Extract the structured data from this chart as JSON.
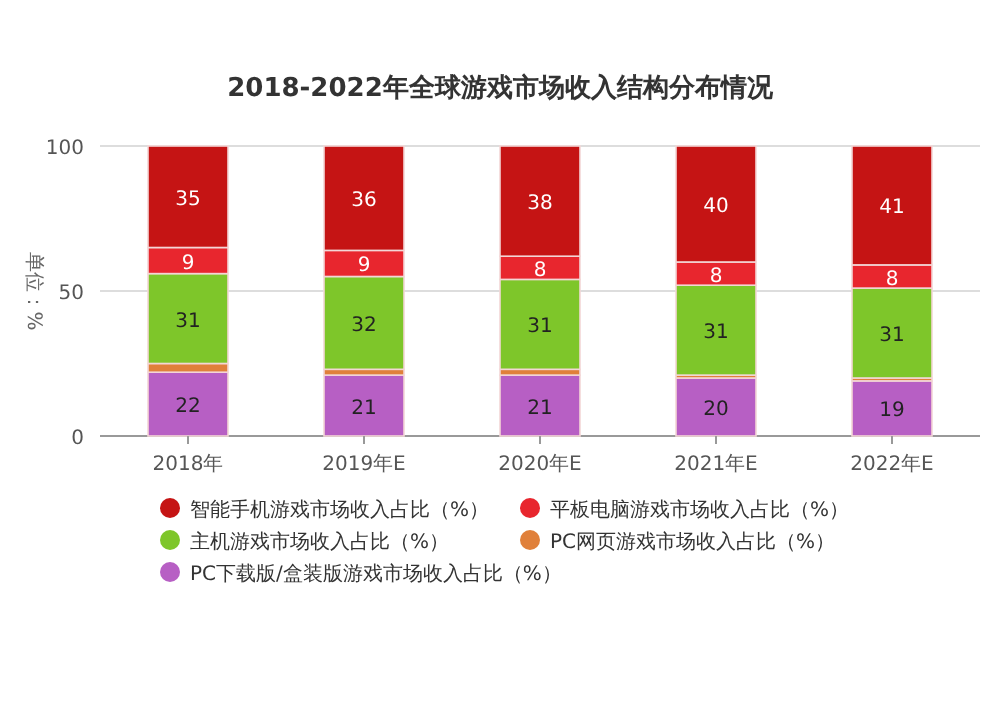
{
  "chart_data": {
    "type": "bar",
    "stacked": true,
    "title": "2018-2022年全球游戏市场收入结构分布情况",
    "ylabel": "单位：%",
    "categories": [
      "2018年",
      "2019年E",
      "2020年E",
      "2021年E",
      "2022年E"
    ],
    "ylim": [
      0,
      100
    ],
    "yticks": [
      0,
      50,
      100
    ],
    "grid": "y",
    "legend": "bottom",
    "series": [
      {
        "name": "PC下载版/盒装版游戏市场收入占比（%）",
        "color": "#b75fc4",
        "values": [
          22,
          21,
          21,
          20,
          19
        ],
        "value_labels": [
          "22",
          "21",
          "21",
          "20",
          "19"
        ]
      },
      {
        "name": "PC网页游戏市场收入占比（%）",
        "color": "#e0803a",
        "values": [
          3,
          2,
          2,
          1,
          1
        ],
        "value_labels": [
          null,
          null,
          null,
          null,
          null
        ]
      },
      {
        "name": "主机游戏市场收入占比（%）",
        "color": "#7ec62a",
        "values": [
          31,
          32,
          31,
          31,
          31
        ],
        "value_labels": [
          "31",
          "32",
          "31",
          "31",
          "31"
        ]
      },
      {
        "name": "平板电脑游戏市场收入占比（%）",
        "color": "#e8262e",
        "values": [
          9,
          9,
          8,
          8,
          8
        ],
        "value_labels": [
          "9",
          "9",
          "8",
          "8",
          "8"
        ]
      },
      {
        "name": "智能手机游戏市场收入占比（%）",
        "color": "#c51414",
        "values": [
          35,
          36,
          38,
          40,
          41
        ],
        "value_labels": [
          "35",
          "36",
          "38",
          "40",
          "41"
        ]
      }
    ]
  }
}
